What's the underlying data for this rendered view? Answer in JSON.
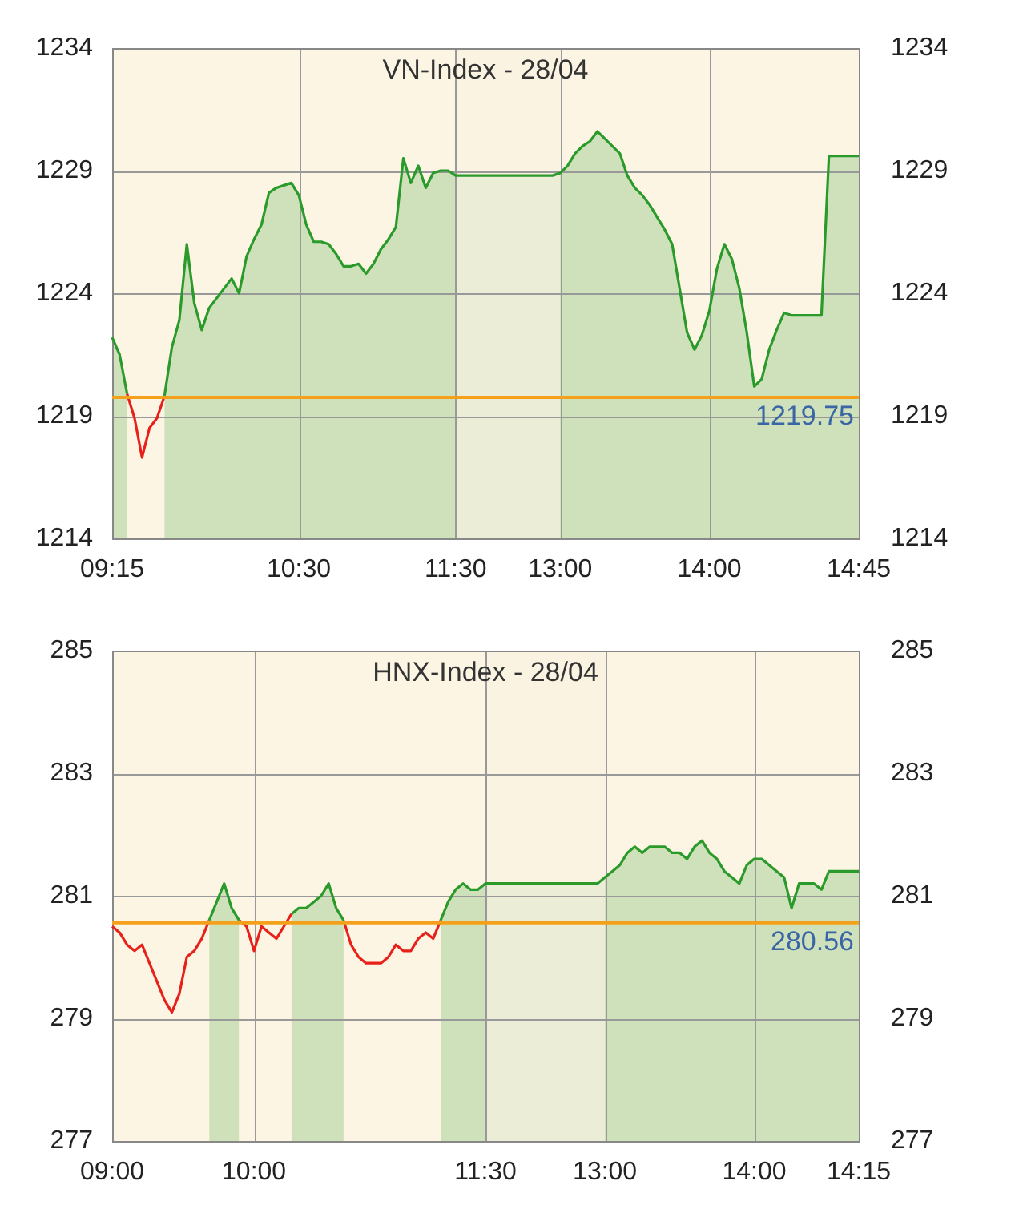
{
  "chart_data": [
    {
      "type": "area",
      "title": "VN-Index - 28/04",
      "ylim": [
        1214,
        1234
      ],
      "yticks": [
        1214,
        1219,
        1224,
        1229,
        1234
      ],
      "y2lim": [
        1214,
        1234
      ],
      "y2ticks": [
        1214,
        1219,
        1224,
        1229,
        1234
      ],
      "grid": true,
      "categories": [
        "09:15",
        null,
        null,
        null,
        null,
        null,
        null,
        null,
        null,
        null,
        null,
        null,
        null,
        null,
        null,
        null,
        null,
        null,
        null,
        null,
        null,
        null,
        null,
        null,
        null,
        "10:30",
        null,
        null,
        null,
        null,
        null,
        null,
        null,
        null,
        null,
        null,
        null,
        null,
        null,
        null,
        null,
        null,
        null,
        null,
        null,
        null,
        "11:30",
        null,
        null,
        null,
        null,
        null,
        null,
        null,
        null,
        null,
        null,
        null,
        null,
        null,
        "13:00",
        null,
        null,
        null,
        null,
        null,
        null,
        null,
        null,
        null,
        null,
        null,
        null,
        null,
        null,
        null,
        null,
        null,
        null,
        null,
        "14:00",
        null,
        null,
        null,
        null,
        null,
        null,
        null,
        null,
        null,
        null,
        null,
        null,
        null,
        null,
        null,
        null,
        null,
        null,
        null,
        "14:45"
      ],
      "series": [
        {
          "color": "#2a9a2a",
          "values": [
            1222.2,
            1221.5,
            1219.9,
            null,
            null,
            null,
            null,
            1219.8,
            1221.8,
            1222.9,
            1226.0,
            1223.6,
            1222.5,
            1223.4,
            1223.8,
            1224.2,
            1224.6,
            1224.0,
            1225.5,
            1226.2,
            1226.8,
            1228.1,
            1228.3,
            1228.4,
            1228.5,
            1228.0,
            1226.8,
            1226.1,
            1226.1,
            1226.0,
            1225.6,
            1225.1,
            1225.1,
            1225.2,
            1224.8,
            1225.2,
            1225.8,
            1226.2,
            1226.7,
            1229.5,
            1228.5,
            1229.2,
            1228.3,
            1228.9,
            1229.0,
            1229.0,
            1228.8,
            1228.8,
            1228.8,
            1228.8,
            1228.8,
            1228.8,
            1228.8,
            1228.8,
            1228.8,
            1228.8,
            1228.8,
            1228.8,
            1228.8,
            1228.8,
            1228.9,
            1229.2,
            1229.7,
            1230.0,
            1230.2,
            1230.6,
            1230.3,
            1230.0,
            1229.7,
            1228.8,
            1228.3,
            1228.0,
            1227.6,
            1227.1,
            1226.6,
            1226.0,
            1224.2,
            1222.4,
            1221.7,
            1222.3,
            1223.3,
            1225.0,
            1226.0,
            1225.4,
            1224.2,
            1222.4,
            1220.2,
            1220.5,
            1221.7,
            1222.5,
            1223.2,
            1223.1,
            1223.1,
            1223.1,
            1223.1,
            1223.1,
            1229.6,
            1229.6,
            1229.6,
            1229.6,
            1229.6
          ]
        },
        {
          "type": "line",
          "color": "#e8201a",
          "values": [
            null,
            null,
            1219.9,
            1218.9,
            1217.3,
            1218.5,
            1218.9,
            1219.8,
            null,
            null,
            null,
            null,
            null,
            null,
            null,
            null,
            null,
            null,
            null,
            null,
            null,
            null,
            null,
            null,
            null,
            null,
            null,
            null,
            null,
            null,
            null,
            null,
            null,
            null,
            null,
            null,
            null,
            null,
            null,
            null,
            null,
            null,
            null,
            null,
            null,
            null,
            null,
            null,
            null,
            null,
            null,
            null,
            null,
            null,
            null,
            null,
            null,
            null,
            null,
            null,
            null,
            null,
            null,
            null,
            null,
            null,
            null,
            null,
            null,
            null,
            null,
            null,
            null,
            null,
            null,
            null,
            null,
            null,
            null,
            null,
            null,
            null,
            null,
            null,
            null,
            null,
            null,
            null,
            null,
            null,
            null,
            null,
            null,
            null,
            null,
            null,
            null,
            null,
            null,
            null,
            null
          ]
        }
      ],
      "ref_lines": [
        {
          "axis": "y",
          "value": 1219.75,
          "label": "1219.75",
          "color": "#f5a01a"
        }
      ],
      "bands": [
        {
          "axis": "x",
          "from": "11:30",
          "to": "13:00",
          "color": "#f8f2e1"
        }
      ]
    },
    {
      "type": "area",
      "title": "HNX-Index - 28/04",
      "ylim": [
        277,
        285
      ],
      "yticks": [
        277,
        279,
        281,
        283,
        285
      ],
      "y2lim": [
        277,
        285
      ],
      "y2ticks": [
        277,
        279,
        281,
        283,
        285
      ],
      "grid": true,
      "categories": [
        "09:00",
        null,
        null,
        null,
        null,
        null,
        null,
        null,
        null,
        null,
        null,
        null,
        null,
        null,
        null,
        null,
        null,
        null,
        null,
        "10:00",
        null,
        null,
        null,
        null,
        null,
        null,
        null,
        null,
        null,
        null,
        null,
        null,
        null,
        null,
        null,
        null,
        null,
        null,
        null,
        null,
        null,
        null,
        null,
        null,
        null,
        null,
        null,
        null,
        null,
        null,
        "11:30",
        null,
        null,
        null,
        null,
        null,
        null,
        null,
        null,
        null,
        null,
        null,
        null,
        null,
        null,
        null,
        "13:00",
        null,
        null,
        null,
        null,
        null,
        null,
        null,
        null,
        null,
        null,
        null,
        null,
        null,
        null,
        null,
        null,
        null,
        null,
        null,
        "14:00",
        null,
        null,
        null,
        null,
        null,
        null,
        null,
        null,
        null,
        null,
        null,
        null,
        null,
        "14:15"
      ],
      "series": [
        {
          "color": "#2a9a2a",
          "values": [
            null,
            null,
            null,
            null,
            null,
            null,
            null,
            null,
            null,
            null,
            null,
            null,
            null,
            280.6,
            280.9,
            281.2,
            280.8,
            280.6,
            null,
            null,
            null,
            null,
            null,
            null,
            280.7,
            280.8,
            280.8,
            280.9,
            281.0,
            281.2,
            280.8,
            280.6,
            null,
            null,
            null,
            null,
            null,
            null,
            null,
            null,
            null,
            null,
            null,
            null,
            280.6,
            280.9,
            281.1,
            281.2,
            281.1,
            281.1,
            281.2,
            281.2,
            281.2,
            281.2,
            281.2,
            281.2,
            281.2,
            281.2,
            281.2,
            281.2,
            281.2,
            281.2,
            281.2,
            281.2,
            281.2,
            281.2,
            281.3,
            281.4,
            281.5,
            281.7,
            281.8,
            281.7,
            281.8,
            281.8,
            281.8,
            281.7,
            281.7,
            281.6,
            281.8,
            281.9,
            281.7,
            281.6,
            281.4,
            281.3,
            281.2,
            281.5,
            281.6,
            281.6,
            281.5,
            281.4,
            281.3,
            280.8,
            281.2,
            281.2,
            281.2,
            281.1,
            281.4,
            281.4,
            281.4,
            281.4,
            281.4
          ]
        },
        {
          "type": "line",
          "color": "#e8201a",
          "values": [
            280.5,
            280.4,
            280.2,
            280.1,
            280.2,
            279.9,
            279.6,
            279.3,
            279.1,
            279.4,
            280.0,
            280.1,
            280.3,
            280.6,
            null,
            null,
            null,
            280.6,
            280.5,
            280.1,
            280.5,
            280.4,
            280.3,
            280.5,
            280.7,
            null,
            null,
            null,
            null,
            null,
            null,
            280.6,
            280.2,
            280.0,
            279.9,
            279.9,
            279.9,
            280.0,
            280.2,
            280.1,
            280.1,
            280.3,
            280.4,
            280.3,
            280.6,
            null,
            null,
            null,
            null,
            null,
            null,
            null,
            null,
            null,
            null,
            null,
            null,
            null,
            null,
            null,
            null,
            null,
            null,
            null,
            null,
            null,
            null,
            null,
            null,
            null,
            null,
            null,
            null,
            null,
            null,
            null,
            null,
            null,
            null,
            null,
            null,
            null,
            null,
            null,
            null,
            null,
            null,
            null,
            null,
            null,
            null,
            null,
            null,
            null,
            null,
            null,
            null,
            null,
            null,
            null,
            null
          ]
        }
      ],
      "ref_lines": [
        {
          "axis": "y",
          "value": 280.56,
          "label": "280.56",
          "color": "#f5a01a"
        }
      ],
      "bands": [
        {
          "axis": "x",
          "from": "11:30",
          "to": "13:00",
          "color": "#f8f2e1"
        }
      ]
    }
  ]
}
